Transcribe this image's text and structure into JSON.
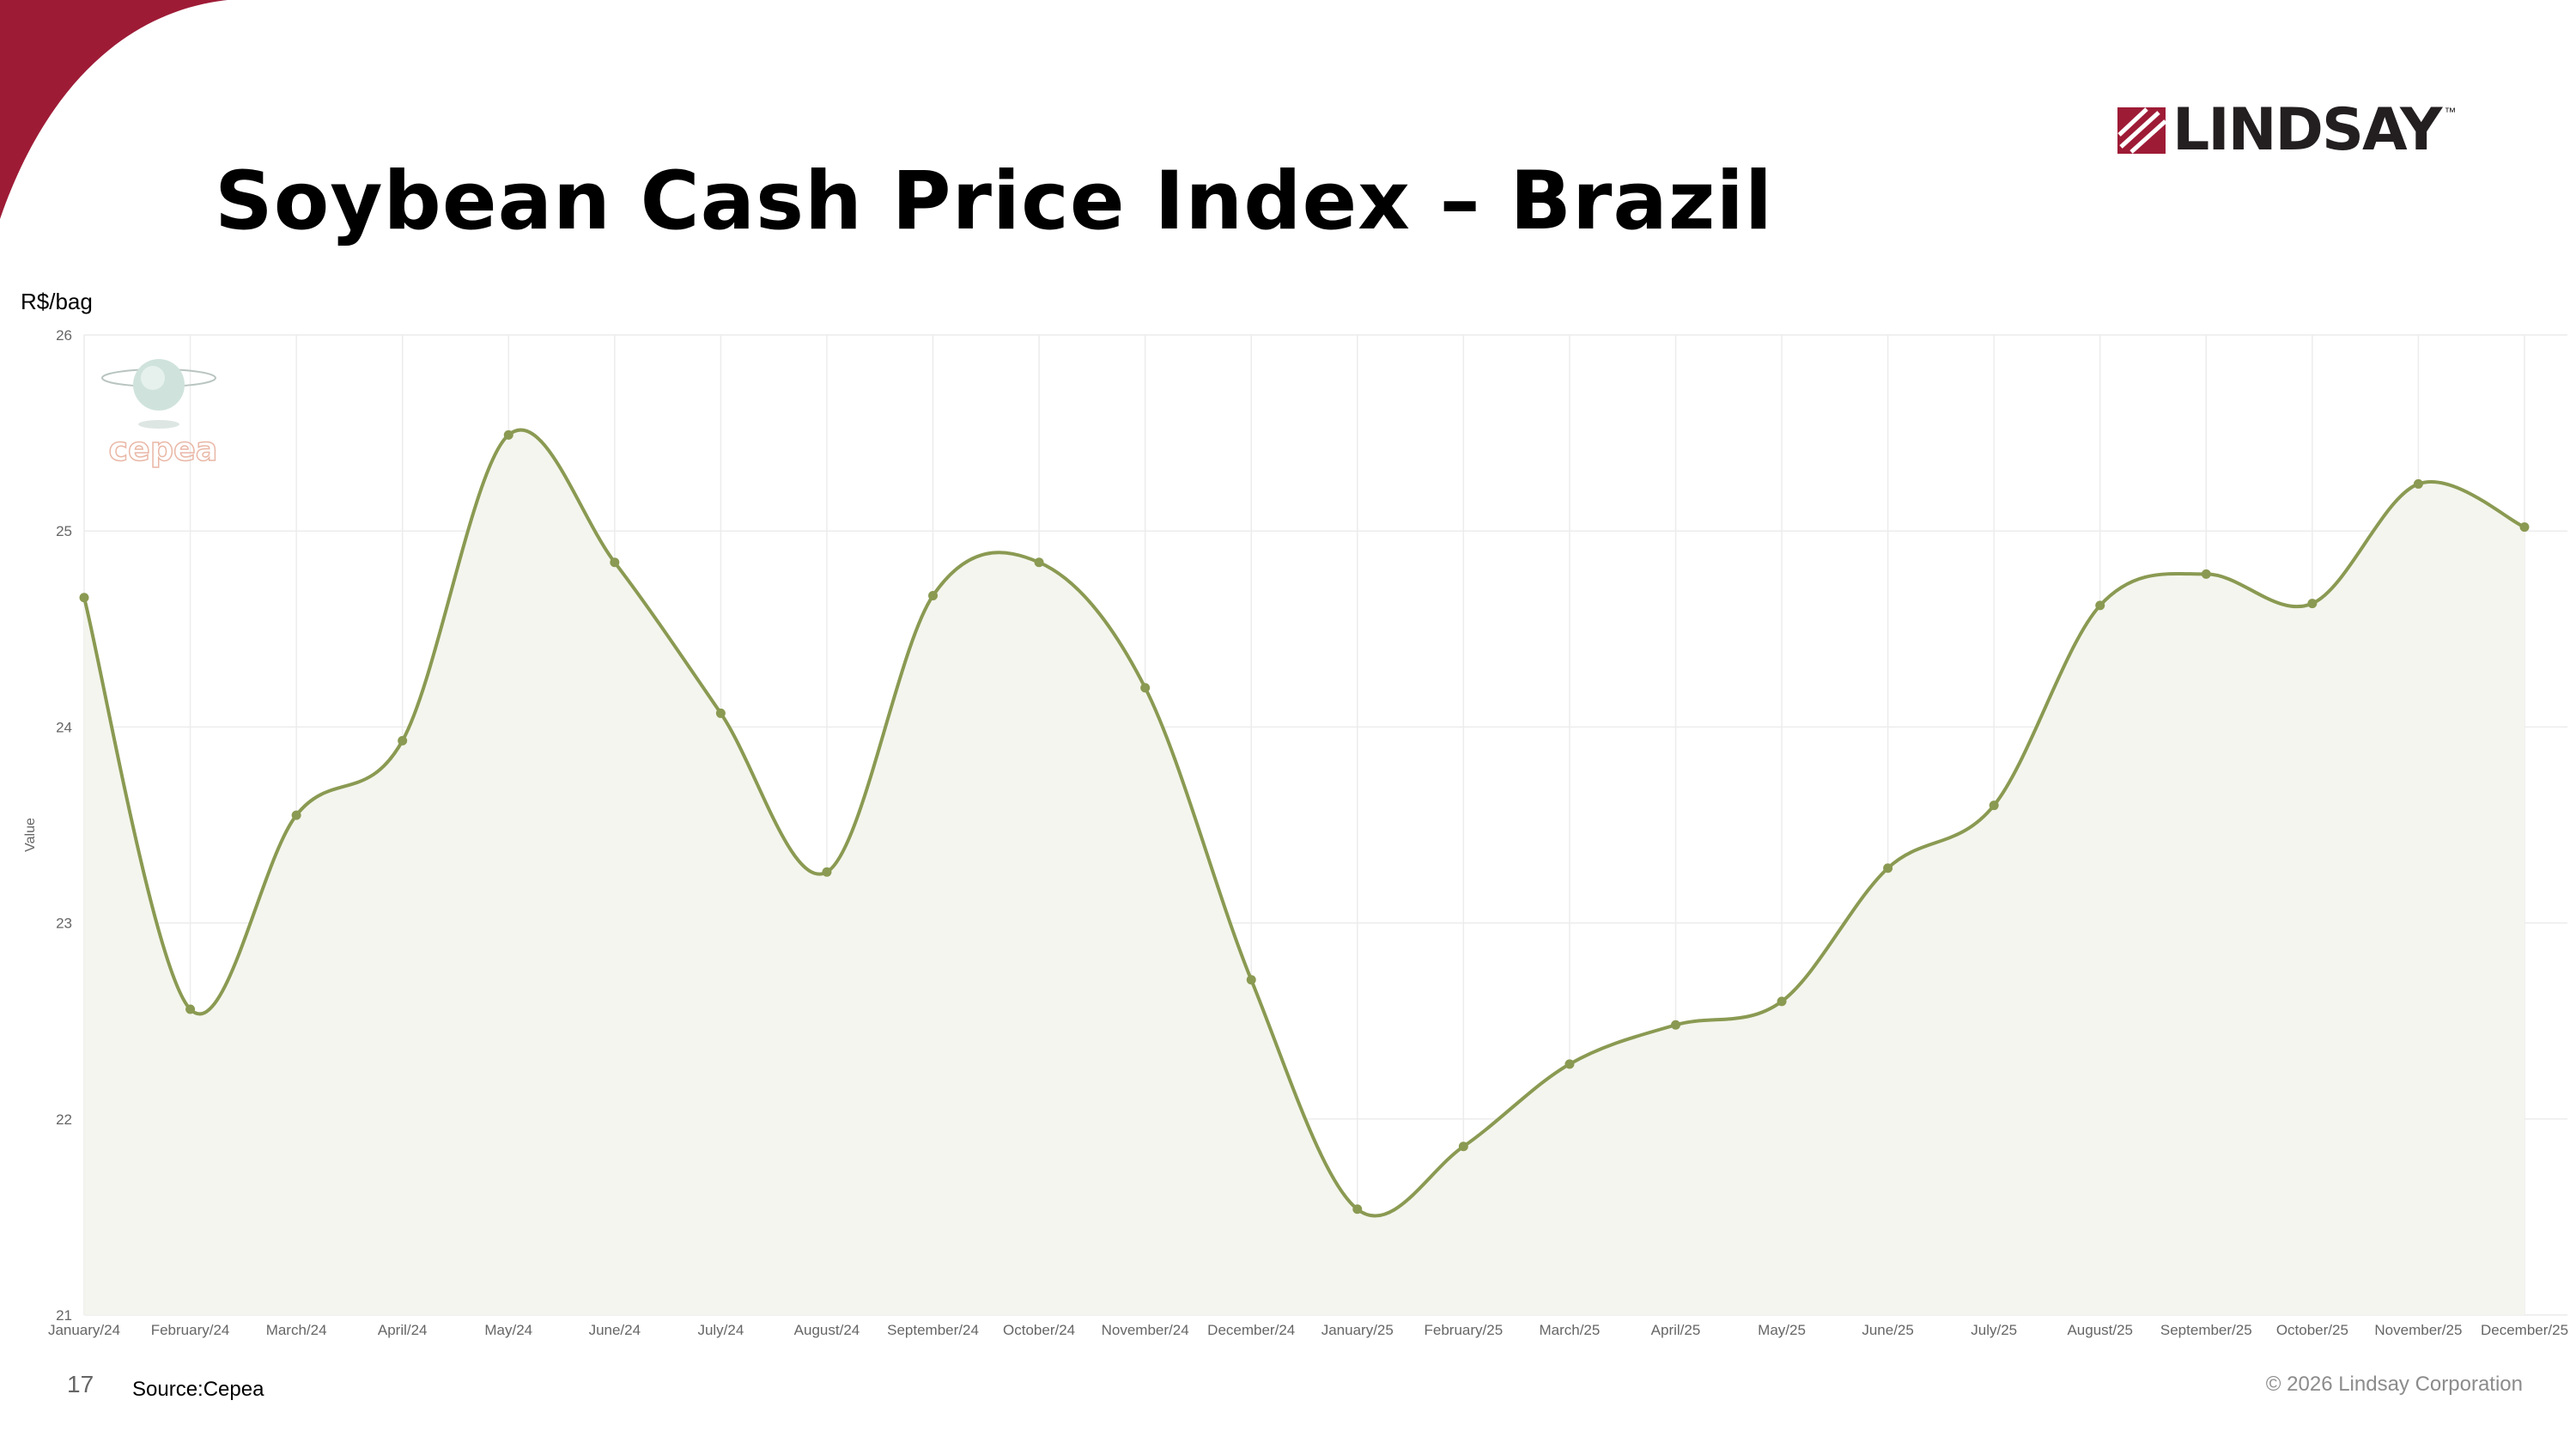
{
  "slide": {
    "title": "Soybean Cash Price Index – Brazil",
    "unit_label": "R$/bag",
    "page_number": "17",
    "source": "Source:Cepea",
    "copyright": "© 2026 Lindsay Corporation",
    "logo_text": "LINDSAY",
    "logo_tm": "™",
    "watermark_text": "cepea"
  },
  "colors": {
    "brand_red": "#9e1b36",
    "line": "#8a9a52",
    "fill": "#f4f5ee",
    "grid": "#ececec",
    "watermark": "#e9b7a6"
  },
  "chart_data": {
    "type": "area",
    "ylabel": "Value",
    "ylim": [
      21,
      26
    ],
    "yticks": [
      21,
      22,
      23,
      24,
      25,
      26
    ],
    "grid": true,
    "categories": [
      "January/24",
      "February/24",
      "March/24",
      "April/24",
      "May/24",
      "June/24",
      "July/24",
      "August/24",
      "September/24",
      "October/24",
      "November/24",
      "December/24",
      "January/25",
      "February/25",
      "March/25",
      "April/25",
      "May/25",
      "June/25",
      "July/25",
      "August/25",
      "September/25",
      "October/25",
      "November/25",
      "December/25"
    ],
    "values": [
      24.66,
      22.56,
      23.55,
      23.93,
      25.49,
      24.84,
      24.07,
      23.26,
      24.67,
      24.84,
      24.2,
      22.71,
      21.54,
      21.86,
      22.28,
      22.48,
      22.6,
      23.28,
      23.6,
      24.62,
      24.78,
      24.63,
      25.24,
      25.02
    ]
  }
}
